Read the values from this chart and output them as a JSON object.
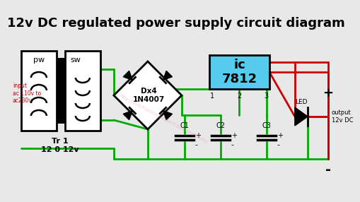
{
  "title": "12v DC regulated power supply circuit diagram",
  "title_fontsize": 13,
  "title_color": "#000000",
  "bg_color": "#e8e8e8",
  "green": "#00aa00",
  "red": "#cc0000",
  "black": "#000000",
  "blue_ic": "#55ccee",
  "watermark_color": "#ee88aa",
  "watermark_text": "http://electronics4project.blogspot.com/",
  "watermark_alpha": 0.45,
  "label_pw": "pw",
  "label_sw": "sw",
  "label_dx4": "Dx4\n1N4007",
  "label_ic": "ic\n7812",
  "label_tr": "Tr 1\n12 0 12v",
  "label_input": "input\nac 110v to\nac230v",
  "label_c1": "C1",
  "label_c2": "C2",
  "label_c3": "C3",
  "label_led": "LED",
  "label_output": "output\n12v DC",
  "label_plus": "+",
  "label_minus": "-",
  "label_1": "1",
  "label_2": "2",
  "label_3": "3"
}
